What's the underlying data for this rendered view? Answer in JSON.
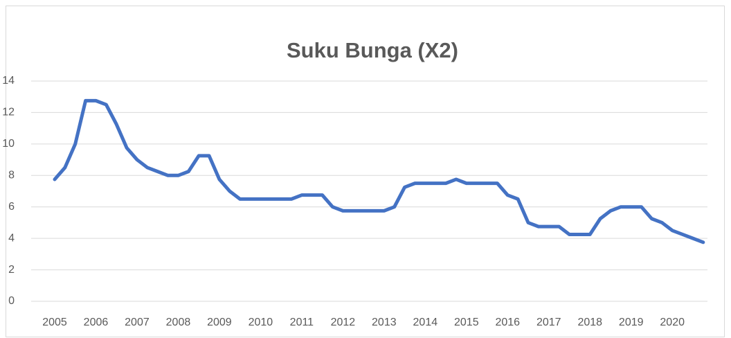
{
  "chart_data": {
    "type": "line",
    "title": "Suku Bunga (X2)",
    "categories": [
      "2005",
      null,
      null,
      null,
      "2006",
      null,
      null,
      null,
      "2007",
      null,
      null,
      null,
      "2008",
      null,
      null,
      null,
      "2009",
      null,
      null,
      null,
      "2010",
      null,
      null,
      null,
      "2011",
      null,
      null,
      null,
      "2012",
      null,
      null,
      null,
      "2013",
      null,
      null,
      null,
      "2014",
      null,
      null,
      null,
      "2015",
      null,
      null,
      null,
      "2016",
      null,
      null,
      null,
      "2017",
      null,
      null,
      null,
      "2018",
      null,
      null,
      null,
      "2019",
      null,
      null,
      null,
      "2020",
      null,
      null,
      null
    ],
    "series": [
      {
        "name": "Suku Bunga (X2)",
        "color": "#4472c4",
        "values": [
          7.75,
          8.5,
          10,
          12.75,
          12.75,
          12.5,
          11.25,
          9.75,
          9,
          8.5,
          8.25,
          8,
          8,
          8.25,
          9.25,
          9.25,
          7.75,
          7,
          6.5,
          6.5,
          6.5,
          6.5,
          6.5,
          6.5,
          6.75,
          6.75,
          6.75,
          6,
          5.75,
          5.75,
          5.75,
          5.75,
          5.75,
          6,
          7.25,
          7.5,
          7.5,
          7.5,
          7.5,
          7.75,
          7.5,
          7.5,
          7.5,
          7.5,
          6.75,
          6.5,
          5,
          4.75,
          4.75,
          4.75,
          4.25,
          4.25,
          4.25,
          5.25,
          5.75,
          6,
          6,
          6,
          5.25,
          5,
          4.5,
          4.25,
          4,
          3.75
        ]
      }
    ],
    "ylim": [
      0,
      14
    ],
    "yticks": [
      0,
      2,
      4,
      6,
      8,
      10,
      12,
      14
    ],
    "grid": true
  }
}
